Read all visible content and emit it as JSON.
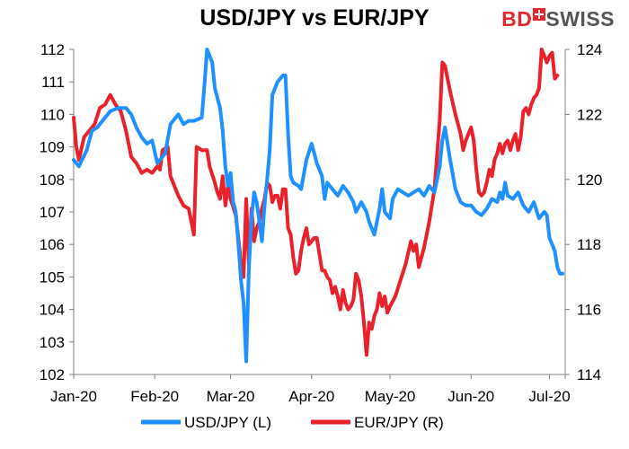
{
  "brand": {
    "bd": "BD",
    "swiss": "SWISS"
  },
  "colors": {
    "usdjpy": "#1E90FF",
    "eurjpy": "#E8212B",
    "axis": "#808080"
  },
  "chart_data": {
    "type": "line",
    "title": "USD/JPY vs EUR/JPY",
    "x_tick_labels": [
      "Jan-20",
      "Feb-20",
      "Mar-20",
      "Apr-20",
      "May-20",
      "Jun-20",
      "Jul-20"
    ],
    "y_left": {
      "min": 102,
      "max": 112,
      "ticks": [
        "102",
        "103",
        "104",
        "105",
        "106",
        "107",
        "108",
        "109",
        "110",
        "111",
        "112"
      ]
    },
    "y_right": {
      "min": 114,
      "max": 124,
      "ticks": [
        "114",
        "116",
        "118",
        "120",
        "122",
        "124"
      ]
    },
    "legend_position": "bottom",
    "series": [
      {
        "name": "USD/JPY (L)",
        "axis": "left",
        "color": "#1E90FF",
        "values": [
          [
            0,
            108.6
          ],
          [
            2,
            108.4
          ],
          [
            5,
            108.9
          ],
          [
            7,
            109.5
          ],
          [
            9,
            109.6
          ],
          [
            12,
            109.9
          ],
          [
            14,
            110.1
          ],
          [
            17,
            110.2
          ],
          [
            20,
            110.2
          ],
          [
            22,
            110.0
          ],
          [
            24,
            109.6
          ],
          [
            26,
            109.3
          ],
          [
            28,
            109.1
          ],
          [
            30,
            109.2
          ],
          [
            32,
            108.5
          ],
          [
            35,
            108.8
          ],
          [
            37,
            109.7
          ],
          [
            40,
            110.0
          ],
          [
            42,
            109.7
          ],
          [
            44,
            109.8
          ],
          [
            46,
            109.8
          ],
          [
            49,
            109.9
          ],
          [
            50,
            110.9
          ],
          [
            51,
            112.0
          ],
          [
            53,
            111.6
          ],
          [
            54,
            110.8
          ],
          [
            56,
            110.2
          ],
          [
            57,
            109.5
          ],
          [
            58,
            108.4
          ],
          [
            59,
            107.8
          ],
          [
            60,
            108.2
          ],
          [
            61,
            107.3
          ],
          [
            62,
            107.0
          ],
          [
            63,
            106.0
          ],
          [
            64,
            104.9
          ],
          [
            65,
            104.2
          ],
          [
            66,
            102.4
          ],
          [
            67,
            105.2
          ],
          [
            68,
            106.8
          ],
          [
            69,
            107.6
          ],
          [
            70,
            107.3
          ],
          [
            71,
            106.7
          ],
          [
            72,
            106.1
          ],
          [
            73,
            107.2
          ],
          [
            74,
            108.0
          ],
          [
            75,
            108.9
          ],
          [
            76,
            110.6
          ],
          [
            78,
            111.0
          ],
          [
            80,
            111.2
          ],
          [
            81,
            111.2
          ],
          [
            82,
            109.4
          ],
          [
            83,
            108.1
          ],
          [
            84,
            107.9
          ],
          [
            86,
            107.8
          ],
          [
            87,
            107.7
          ],
          [
            89,
            108.6
          ],
          [
            91,
            109.1
          ],
          [
            93,
            108.5
          ],
          [
            95,
            108.1
          ],
          [
            96,
            107.4
          ],
          [
            97,
            107.9
          ],
          [
            99,
            107.7
          ],
          [
            101,
            107.5
          ],
          [
            103,
            107.8
          ],
          [
            105,
            107.6
          ],
          [
            107,
            107.3
          ],
          [
            108,
            107.0
          ],
          [
            110,
            107.3
          ],
          [
            112,
            107.0
          ],
          [
            113,
            106.7
          ],
          [
            115,
            106.3
          ],
          [
            117,
            107.1
          ],
          [
            118,
            107.7
          ],
          [
            119,
            107.0
          ],
          [
            121,
            106.8
          ],
          [
            122,
            107.4
          ],
          [
            124,
            107.7
          ],
          [
            126,
            107.6
          ],
          [
            128,
            107.5
          ],
          [
            130,
            107.6
          ],
          [
            132,
            107.7
          ],
          [
            134,
            107.5
          ],
          [
            136,
            107.8
          ],
          [
            138,
            107.6
          ],
          [
            140,
            108.4
          ],
          [
            141,
            109.2
          ],
          [
            142,
            109.6
          ],
          [
            144,
            108.6
          ],
          [
            146,
            107.7
          ],
          [
            148,
            107.3
          ],
          [
            150,
            107.2
          ],
          [
            152,
            107.2
          ],
          [
            154,
            107.0
          ],
          [
            156,
            106.9
          ],
          [
            158,
            107.1
          ],
          [
            160,
            107.4
          ],
          [
            162,
            107.3
          ],
          [
            163,
            107.6
          ],
          [
            164,
            107.4
          ],
          [
            165,
            107.9
          ],
          [
            166,
            107.5
          ],
          [
            168,
            107.4
          ],
          [
            170,
            107.6
          ],
          [
            172,
            107.2
          ],
          [
            174,
            107.0
          ],
          [
            176,
            107.3
          ],
          [
            178,
            106.8
          ],
          [
            180,
            107.0
          ],
          [
            181,
            106.9
          ],
          [
            182,
            106.2
          ],
          [
            184,
            105.8
          ],
          [
            185,
            105.3
          ],
          [
            186,
            105.1
          ],
          [
            187,
            105.1
          ]
        ]
      },
      {
        "name": "EUR/JPY (R)",
        "axis": "right",
        "color": "#E8212B",
        "values": [
          [
            0,
            121.9
          ],
          [
            1,
            121.0
          ],
          [
            2,
            120.6
          ],
          [
            4,
            121.3
          ],
          [
            6,
            121.5
          ],
          [
            8,
            121.7
          ],
          [
            10,
            122.2
          ],
          [
            12,
            122.3
          ],
          [
            14,
            122.6
          ],
          [
            16,
            122.3
          ],
          [
            18,
            122.1
          ],
          [
            20,
            121.5
          ],
          [
            22,
            120.7
          ],
          [
            24,
            120.5
          ],
          [
            26,
            120.2
          ],
          [
            28,
            120.3
          ],
          [
            30,
            120.2
          ],
          [
            32,
            120.4
          ],
          [
            33,
            120.3
          ],
          [
            34,
            120.9
          ],
          [
            36,
            121.0
          ],
          [
            37,
            120.1
          ],
          [
            38,
            119.9
          ],
          [
            40,
            119.5
          ],
          [
            42,
            119.2
          ],
          [
            44,
            119.1
          ],
          [
            46,
            118.3
          ],
          [
            47,
            121.0
          ],
          [
            49,
            120.9
          ],
          [
            51,
            120.9
          ],
          [
            52,
            120.4
          ],
          [
            54,
            119.9
          ],
          [
            55,
            119.6
          ],
          [
            56,
            119.4
          ],
          [
            57,
            120.1
          ],
          [
            58,
            119.2
          ],
          [
            59,
            119.8
          ],
          [
            60,
            119.4
          ],
          [
            62,
            118.9
          ],
          [
            63,
            118.2
          ],
          [
            64,
            117.4
          ],
          [
            65,
            117.0
          ],
          [
            66,
            119.4
          ],
          [
            67,
            117.4
          ],
          [
            68,
            119.1
          ],
          [
            69,
            118.1
          ],
          [
            70,
            118.5
          ],
          [
            71,
            118.7
          ],
          [
            72,
            119.1
          ],
          [
            73,
            119.4
          ],
          [
            74,
            119.9
          ],
          [
            75,
            119.8
          ],
          [
            76,
            119.3
          ],
          [
            77,
            119.5
          ],
          [
            78,
            119.5
          ],
          [
            79,
            119.1
          ],
          [
            80,
            119.7
          ],
          [
            81,
            119.7
          ],
          [
            82,
            118.5
          ],
          [
            83,
            118.3
          ],
          [
            84,
            117.6
          ],
          [
            85,
            117.1
          ],
          [
            86,
            117.2
          ],
          [
            87,
            117.8
          ],
          [
            88,
            118.2
          ],
          [
            89,
            118.5
          ],
          [
            90,
            118.0
          ],
          [
            91,
            118.1
          ],
          [
            92,
            118.2
          ],
          [
            93,
            118.2
          ],
          [
            94,
            117.7
          ],
          [
            95,
            117.2
          ],
          [
            96,
            117.2
          ],
          [
            97,
            117.0
          ],
          [
            98,
            116.9
          ],
          [
            99,
            116.5
          ],
          [
            100,
            116.7
          ],
          [
            101,
            116.4
          ],
          [
            102,
            116.0
          ],
          [
            103,
            116.6
          ],
          [
            104,
            116.2
          ],
          [
            105,
            116.0
          ],
          [
            106,
            116.1
          ],
          [
            107,
            116.3
          ],
          [
            108,
            117.1
          ],
          [
            109,
            116.9
          ],
          [
            110,
            116.4
          ],
          [
            111,
            115.6
          ],
          [
            112,
            114.6
          ],
          [
            113,
            115.6
          ],
          [
            114,
            115.4
          ],
          [
            115,
            115.8
          ],
          [
            116,
            116.0
          ],
          [
            117,
            116.5
          ],
          [
            118,
            116.1
          ],
          [
            119,
            116.4
          ],
          [
            120,
            115.9
          ],
          [
            121,
            116.1
          ],
          [
            123,
            116.4
          ],
          [
            125,
            116.9
          ],
          [
            127,
            117.4
          ],
          [
            129,
            118.1
          ],
          [
            130,
            117.8
          ],
          [
            131,
            118.0
          ],
          [
            132,
            117.3
          ],
          [
            134,
            117.9
          ],
          [
            136,
            118.7
          ],
          [
            138,
            119.7
          ],
          [
            140,
            121.8
          ],
          [
            141,
            123.6
          ],
          [
            142,
            123.5
          ],
          [
            144,
            122.7
          ],
          [
            146,
            122.0
          ],
          [
            148,
            121.4
          ],
          [
            149,
            120.9
          ],
          [
            150,
            121.2
          ],
          [
            151,
            121.4
          ],
          [
            152,
            121.6
          ],
          [
            153,
            121.2
          ],
          [
            154,
            120.3
          ],
          [
            155,
            119.6
          ],
          [
            156,
            119.5
          ],
          [
            157,
            119.6
          ],
          [
            158,
            119.9
          ],
          [
            159,
            120.3
          ],
          [
            160,
            120.1
          ],
          [
            161,
            120.6
          ],
          [
            162,
            120.8
          ],
          [
            163,
            121.1
          ],
          [
            164,
            120.8
          ],
          [
            165,
            121.1
          ],
          [
            166,
            121.2
          ],
          [
            167,
            120.9
          ],
          [
            168,
            121.2
          ],
          [
            169,
            121.4
          ],
          [
            170,
            120.9
          ],
          [
            171,
            121.3
          ],
          [
            172,
            122.1
          ],
          [
            173,
            122.2
          ],
          [
            174,
            122.0
          ],
          [
            175,
            122.3
          ],
          [
            176,
            122.5
          ],
          [
            177,
            122.6
          ],
          [
            178,
            122.8
          ],
          [
            179,
            124.0
          ],
          [
            180,
            123.8
          ],
          [
            181,
            123.6
          ],
          [
            182,
            123.8
          ],
          [
            183,
            123.9
          ],
          [
            184,
            123.1
          ],
          [
            185,
            123.2
          ]
        ]
      }
    ]
  }
}
